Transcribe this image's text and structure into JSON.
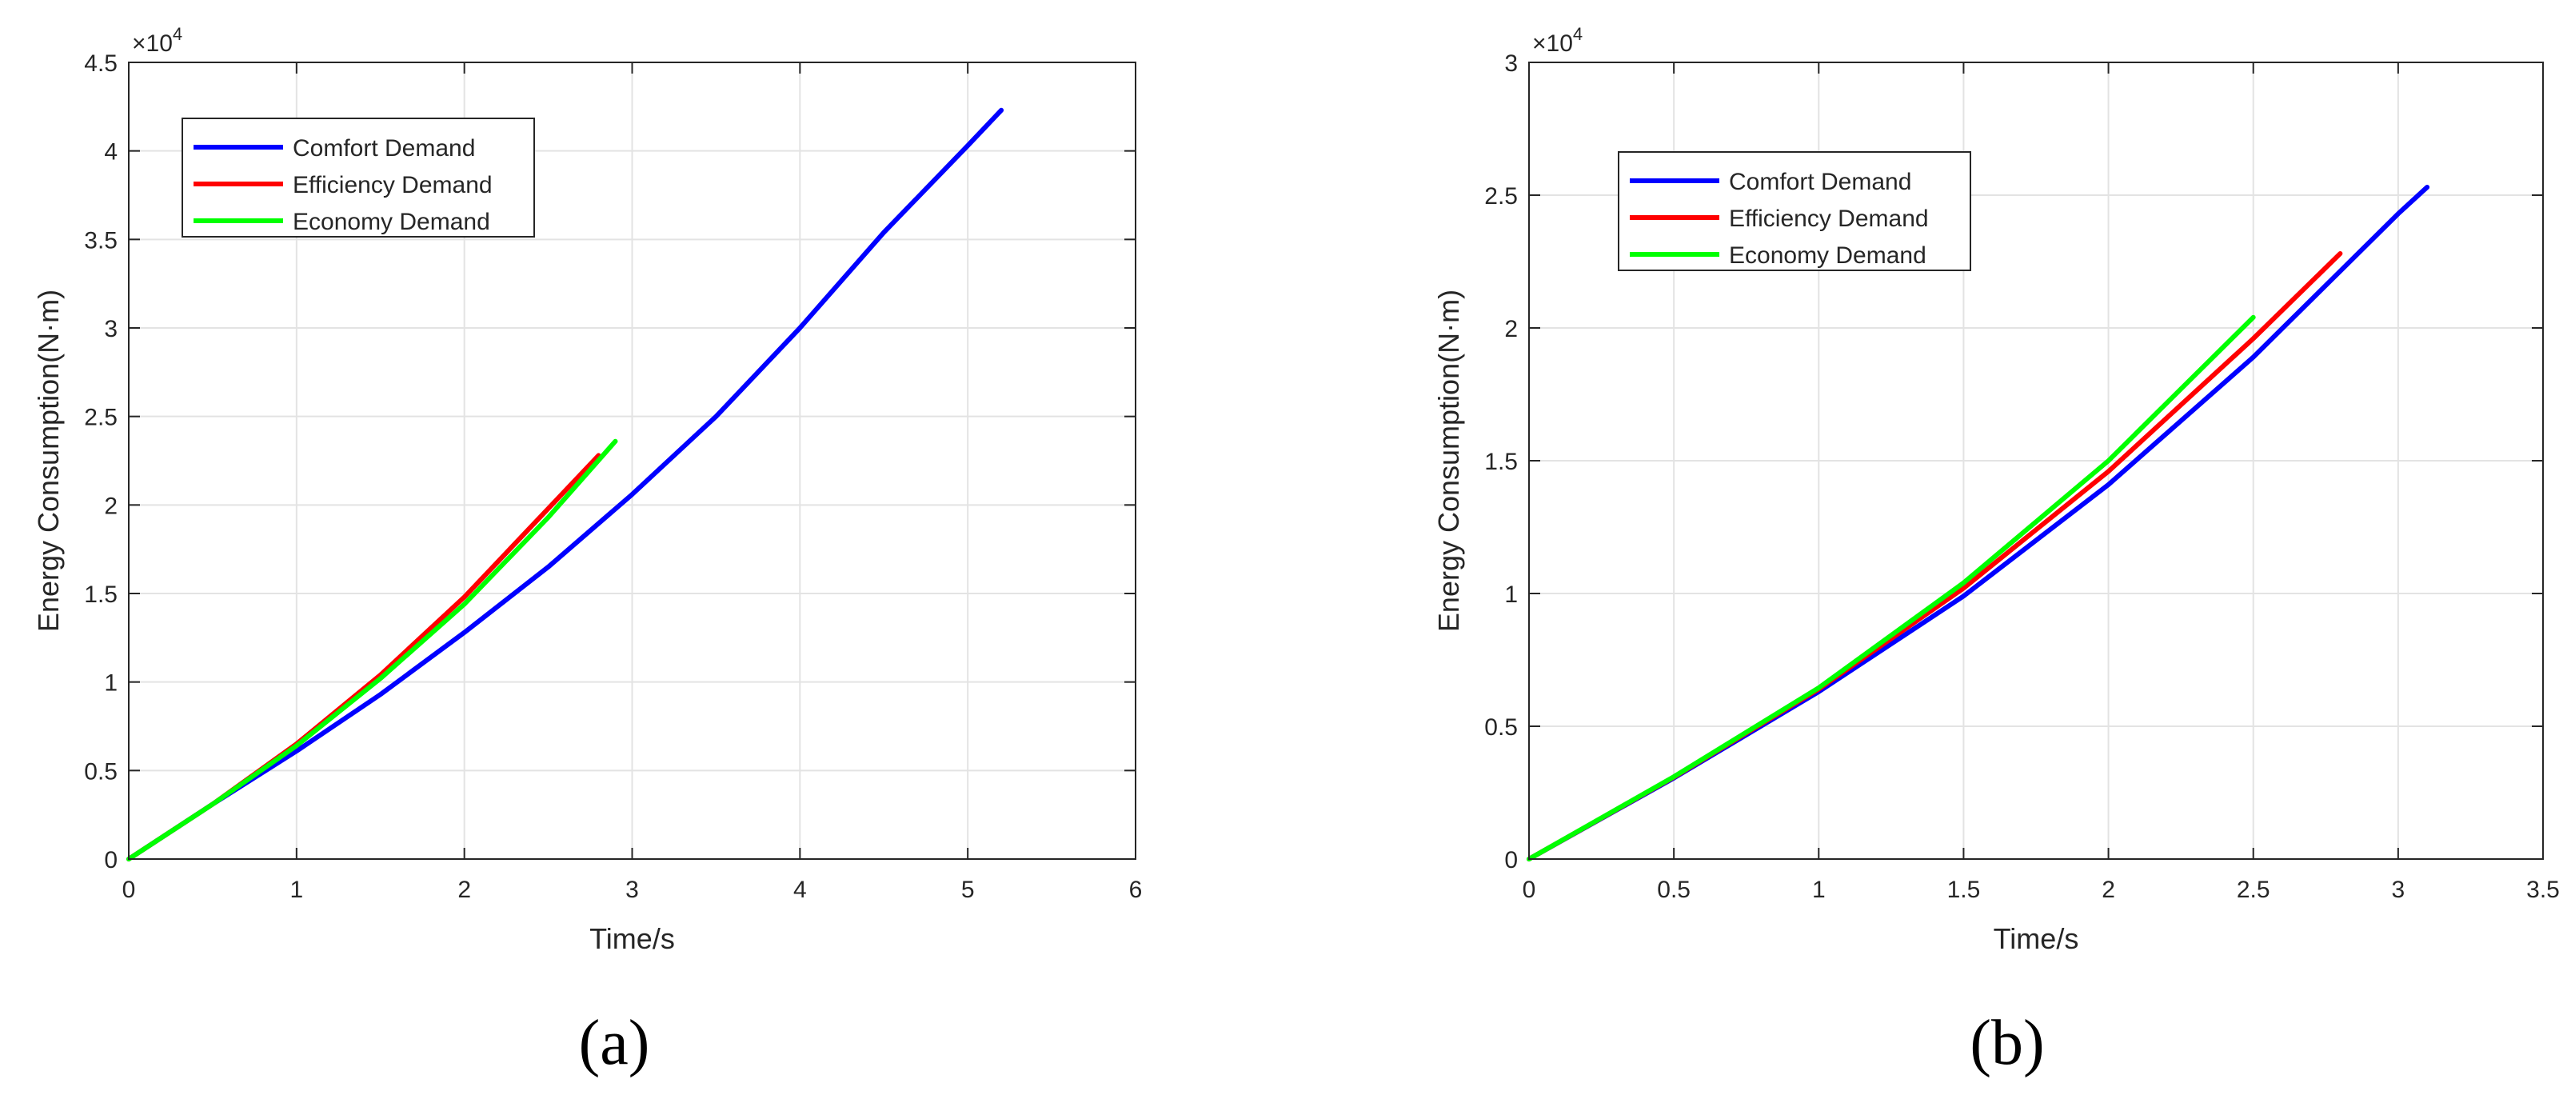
{
  "chart_data": [
    {
      "type": "line",
      "panel_label": "(a)",
      "xlabel": "Time/s",
      "ylabel": "Energy Consumption(N·m)",
      "exponent_label": "×10",
      "exponent_power": "4",
      "xlim": [
        0,
        6
      ],
      "ylim": [
        0,
        45000
      ],
      "xticks": [
        0,
        1,
        2,
        3,
        4,
        5,
        6
      ],
      "xtick_labels": [
        "0",
        "1",
        "2",
        "3",
        "4",
        "5",
        "6"
      ],
      "yticks": [
        0,
        5000,
        10000,
        15000,
        20000,
        25000,
        30000,
        35000,
        40000,
        45000
      ],
      "ytick_labels": [
        "0",
        "0.5",
        "1",
        "1.5",
        "2",
        "2.5",
        "3",
        "3.5",
        "4",
        "4.5"
      ],
      "grid": true,
      "legend_position": "top-left",
      "series": [
        {
          "name": "Comfort Demand",
          "color": "#0000ff",
          "points": [
            [
              0,
              0
            ],
            [
              0.5,
              3100
            ],
            [
              1,
              6100
            ],
            [
              1.5,
              9300
            ],
            [
              2,
              12800
            ],
            [
              2.5,
              16500
            ],
            [
              3,
              20600
            ],
            [
              3.5,
              25000
            ],
            [
              4,
              30000
            ],
            [
              4.5,
              35400
            ],
            [
              5,
              40300
            ],
            [
              5.2,
              42300
            ]
          ]
        },
        {
          "name": "Efficiency Demand",
          "color": "#ff0000",
          "points": [
            [
              0,
              0
            ],
            [
              0.5,
              3100
            ],
            [
              1,
              6500
            ],
            [
              1.5,
              10400
            ],
            [
              2,
              14800
            ],
            [
              2.5,
              19800
            ],
            [
              2.8,
              22800
            ]
          ]
        },
        {
          "name": "Economy Demand",
          "color": "#00ff00",
          "points": [
            [
              0,
              0
            ],
            [
              0.5,
              3100
            ],
            [
              1,
              6400
            ],
            [
              1.5,
              10200
            ],
            [
              2,
              14400
            ],
            [
              2.5,
              19300
            ],
            [
              2.9,
              23600
            ]
          ]
        }
      ]
    },
    {
      "type": "line",
      "panel_label": "(b)",
      "xlabel": "Time/s",
      "ylabel": "Energy Consumption(N·m)",
      "exponent_label": "×10",
      "exponent_power": "4",
      "xlim": [
        0,
        3.5
      ],
      "ylim": [
        0,
        30000
      ],
      "xticks": [
        0,
        0.5,
        1,
        1.5,
        2,
        2.5,
        3,
        3.5
      ],
      "xtick_labels": [
        "0",
        "0.5",
        "1",
        "1.5",
        "2",
        "2.5",
        "3",
        "3.5"
      ],
      "yticks": [
        0,
        5000,
        10000,
        15000,
        20000,
        25000,
        30000
      ],
      "ytick_labels": [
        "0",
        "0.5",
        "1",
        "1.5",
        "2",
        "2.5",
        "3"
      ],
      "grid": true,
      "legend_position": "top-left",
      "series": [
        {
          "name": "Comfort Demand",
          "color": "#0000ff",
          "points": [
            [
              0,
              0
            ],
            [
              0.5,
              3050
            ],
            [
              1,
              6300
            ],
            [
              1.5,
              9900
            ],
            [
              2,
              14100
            ],
            [
              2.5,
              18900
            ],
            [
              3,
              24300
            ],
            [
              3.1,
              25300
            ]
          ]
        },
        {
          "name": "Efficiency Demand",
          "color": "#ff0000",
          "points": [
            [
              0,
              0
            ],
            [
              0.5,
              3080
            ],
            [
              1,
              6400
            ],
            [
              1.5,
              10200
            ],
            [
              2,
              14600
            ],
            [
              2.5,
              19600
            ],
            [
              2.8,
              22800
            ]
          ]
        },
        {
          "name": "Economy Demand",
          "color": "#00ff00",
          "points": [
            [
              0,
              0
            ],
            [
              0.5,
              3100
            ],
            [
              1,
              6450
            ],
            [
              1.5,
              10400
            ],
            [
              2,
              15000
            ],
            [
              2.5,
              20400
            ]
          ]
        }
      ]
    }
  ]
}
